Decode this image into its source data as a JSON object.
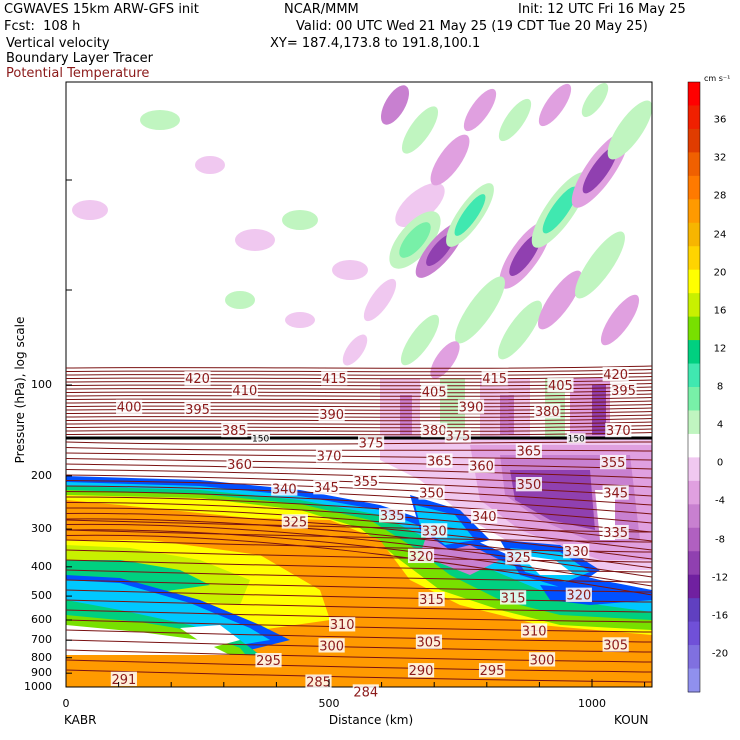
{
  "header": {
    "model": "CGWAVES 15km ARW-GFS init",
    "source": "NCAR/MMM",
    "init": "Init: 12 UTC Fri 16 May 25",
    "fcst": "Fcst:  108 h",
    "valid": "Valid: 00 UTC Wed 21 May 25 (19 CDT Tue 20 May 25)",
    "field1": "Vertical velocity",
    "xy": "XY= 187.4,173.8 to 191.8,100.1",
    "field2": "Boundary Layer Tracer",
    "field3": "Potential Temperature"
  },
  "colors": {
    "theta_line": "#7a1212",
    "theta_text": "#8b1a1a",
    "tropopause_line": "#000000"
  },
  "chart_data": {
    "type": "heatmap",
    "xlabel": "Distance (km)",
    "ylabel": "Pressure (hPa), log scale",
    "x_ticks": [
      0,
      500,
      1000
    ],
    "xlim": [
      0,
      1110
    ],
    "y_ticks": [
      100,
      200,
      300,
      400,
      500,
      600,
      700,
      800,
      900,
      1000
    ],
    "y_scale": "log",
    "y_endpoints": {
      "left": "KABR",
      "right": "KOUN"
    },
    "colorbar": {
      "unit": "cm s⁻¹",
      "labels": [
        36,
        32,
        28,
        24,
        20,
        16,
        12,
        8,
        4,
        0,
        -4,
        -8,
        -12,
        -16,
        -20
      ],
      "colors": [
        "#ff0000",
        "#f02000",
        "#e03c00",
        "#f06000",
        "#ff7a00",
        "#ff9a00",
        "#f7b500",
        "#ffd400",
        "#ffff00",
        "#c8f000",
        "#78e000",
        "#00d080",
        "#40e8b0",
        "#78f0a8",
        "#c0f5c0",
        "#ffffff",
        "#f0c8f0",
        "#e0a0e0",
        "#c880d0",
        "#b060c0",
        "#9040b0",
        "#7020a0",
        "#6040c0",
        "#7050d8",
        "#8070e0",
        "#9090ee"
      ]
    },
    "theta_labels": [
      {
        "text": "420",
        "x": 250,
        "p": 95
      },
      {
        "text": "415",
        "x": 510,
        "p": 95
      },
      {
        "text": "415",
        "x": 815,
        "p": 95
      },
      {
        "text": "420",
        "x": 1045,
        "p": 92
      },
      {
        "text": "410",
        "x": 340,
        "p": 104
      },
      {
        "text": "405",
        "x": 700,
        "p": 105
      },
      {
        "text": "405",
        "x": 940,
        "p": 100
      },
      {
        "text": "395",
        "x": 1060,
        "p": 104
      },
      {
        "text": "400",
        "x": 120,
        "p": 118
      },
      {
        "text": "395",
        "x": 250,
        "p": 120
      },
      {
        "text": "390",
        "x": 505,
        "p": 125
      },
      {
        "text": "390",
        "x": 770,
        "p": 118
      },
      {
        "text": "380",
        "x": 915,
        "p": 122
      },
      {
        "text": "385",
        "x": 320,
        "p": 141
      },
      {
        "text": "380",
        "x": 700,
        "p": 141
      },
      {
        "text": "375",
        "x": 745,
        "p": 147
      },
      {
        "text": "370",
        "x": 1050,
        "p": 141
      },
      {
        "text": "375",
        "x": 580,
        "p": 155
      },
      {
        "text": "370",
        "x": 500,
        "p": 171
      },
      {
        "text": "365",
        "x": 710,
        "p": 178
      },
      {
        "text": "365",
        "x": 880,
        "p": 165
      },
      {
        "text": "360",
        "x": 330,
        "p": 183
      },
      {
        "text": "360",
        "x": 790,
        "p": 185
      },
      {
        "text": "355",
        "x": 570,
        "p": 208
      },
      {
        "text": "355",
        "x": 1040,
        "p": 180
      },
      {
        "text": "350",
        "x": 695,
        "p": 227
      },
      {
        "text": "350",
        "x": 880,
        "p": 213
      },
      {
        "text": "345",
        "x": 1045,
        "p": 227
      },
      {
        "text": "345",
        "x": 495,
        "p": 218
      },
      {
        "text": "340",
        "x": 415,
        "p": 220
      },
      {
        "text": "340",
        "x": 795,
        "p": 272
      },
      {
        "text": "335",
        "x": 620,
        "p": 270
      },
      {
        "text": "335",
        "x": 1045,
        "p": 307
      },
      {
        "text": "330",
        "x": 700,
        "p": 303
      },
      {
        "text": "330",
        "x": 970,
        "p": 355
      },
      {
        "text": "325",
        "x": 435,
        "p": 283
      },
      {
        "text": "325",
        "x": 860,
        "p": 372
      },
      {
        "text": "320",
        "x": 675,
        "p": 368
      },
      {
        "text": "320",
        "x": 975,
        "p": 495
      },
      {
        "text": "315",
        "x": 695,
        "p": 512
      },
      {
        "text": "315",
        "x": 850,
        "p": 505
      },
      {
        "text": "310",
        "x": 525,
        "p": 620
      },
      {
        "text": "310",
        "x": 890,
        "p": 650
      },
      {
        "text": "305",
        "x": 690,
        "p": 708
      },
      {
        "text": "305",
        "x": 1045,
        "p": 723
      },
      {
        "text": "300",
        "x": 505,
        "p": 728
      },
      {
        "text": "300",
        "x": 905,
        "p": 810
      },
      {
        "text": "295",
        "x": 385,
        "p": 815
      },
      {
        "text": "295",
        "x": 810,
        "p": 880
      },
      {
        "text": "290",
        "x": 675,
        "p": 880
      },
      {
        "text": "291",
        "x": 110,
        "p": 940
      },
      {
        "text": "285",
        "x": 480,
        "p": 960
      },
      {
        "text": "284",
        "x": 570,
        "p": 1035
      }
    ],
    "tropopause_labels": [
      {
        "text": "150",
        "x": 370,
        "p": 150
      },
      {
        "text": "150",
        "x": 970,
        "p": 150
      }
    ]
  }
}
